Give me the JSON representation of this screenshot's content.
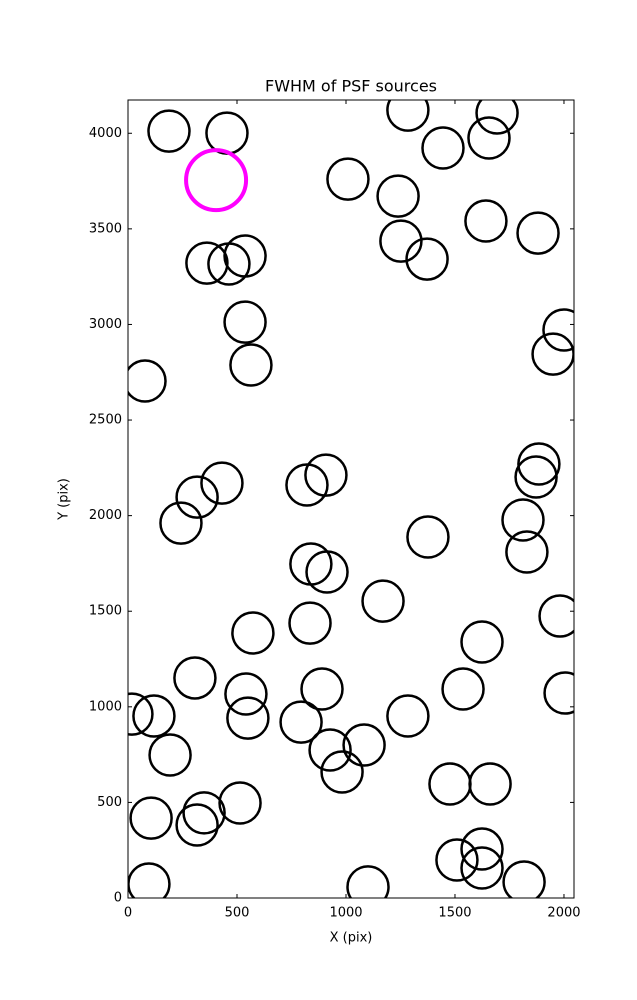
{
  "chart_data": {
    "type": "scatter",
    "title": "FWHM of PSF sources",
    "x_label": "X (pix)",
    "y_label": "Y (pix)",
    "xlim": [
      0,
      2046
    ],
    "ylim": [
      0,
      4174
    ],
    "xticks": [
      0,
      500,
      1000,
      1500,
      2000
    ],
    "yticks": [
      0,
      500,
      1000,
      1500,
      2000,
      2500,
      3000,
      3500,
      4000
    ],
    "series": [
      {
        "color": "#000000",
        "x": [
          188,
          454,
          1284,
          1693,
          1656,
          1445,
          1009,
          1239,
          1642,
          1881,
          1252,
          1372,
          362,
          463,
          537,
          537,
          2000,
          1950,
          564,
          78,
          1885,
          1872,
          431,
          317,
          243,
          908,
          821,
          1812,
          1376,
          839,
          913,
          1830,
          1170,
          1982,
          573,
          835,
          1624,
          307,
          541,
          890,
          1537,
          2005,
          18,
          119,
          550,
          794,
          1284,
          927,
          1083,
          193,
          982,
          1477,
          1661,
          514,
          349,
          106,
          317,
          1624,
          1509,
          1624,
          96,
          1101,
          1817
        ],
        "y": [
          4011,
          4001,
          4121,
          4106,
          3975,
          3923,
          3760,
          3671,
          3541,
          3478,
          3436,
          3342,
          3321,
          3316,
          3358,
          3012,
          2971,
          2845,
          2788,
          2704,
          2270,
          2202,
          2170,
          2097,
          1961,
          2212,
          2160,
          1977,
          1888,
          1747,
          1705,
          1810,
          1553,
          1475,
          1386,
          1438,
          1339,
          1151,
          1067,
          1093,
          1093,
          1072,
          962,
          952,
          941,
          920,
          952,
          774,
          800,
          748,
          659,
          596,
          596,
          497,
          445,
          418,
          382,
          256,
          199,
          157,
          73,
          58,
          84
        ]
      },
      {
        "color": "#ff00ff",
        "x": [
          404
        ],
        "y": [
          3755
        ]
      }
    ]
  }
}
